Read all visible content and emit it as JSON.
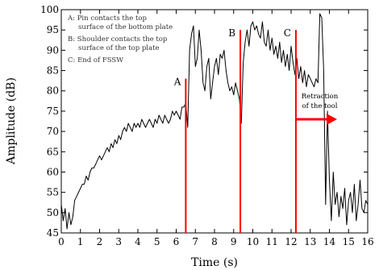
{
  "chart_data": {
    "type": "line",
    "xlabel": "Time (s)",
    "ylabel": "Amplitude (dB)",
    "xlim": [
      0,
      16
    ],
    "ylim": [
      45,
      100
    ],
    "x_ticks": [
      0,
      1,
      2,
      3,
      4,
      5,
      6,
      7,
      8,
      9,
      10,
      11,
      12,
      13,
      14,
      15,
      16
    ],
    "y_ticks": [
      45,
      50,
      55,
      60,
      65,
      70,
      75,
      80,
      85,
      90,
      95,
      100
    ],
    "grid": false,
    "legend_lines": [
      "A: Pin contacts the top",
      "surface of the bottom plate",
      "B: Shoulder contacts the top",
      "surface of the top plate",
      "C: End of FSSW"
    ],
    "markers": [
      {
        "label": "A",
        "x": 6.5,
        "color": "#ff0000"
      },
      {
        "label": "B",
        "x": 9.35,
        "color": "#ff0000"
      },
      {
        "label": "C",
        "x": 12.25,
        "color": "#ff0000"
      }
    ],
    "annotation": {
      "lines": [
        "Retraction",
        "of the tool"
      ],
      "arrow_from_x": 12.25,
      "arrow_to_x": 14.4,
      "arrow_y": 73,
      "color": "#ff0000"
    },
    "series": [
      {
        "color": "#000000",
        "x": [
          0.0,
          0.1,
          0.2,
          0.3,
          0.4,
          0.5,
          0.6,
          0.7,
          0.8,
          0.9,
          1.0,
          1.1,
          1.2,
          1.3,
          1.4,
          1.5,
          1.6,
          1.7,
          1.8,
          1.9,
          2.0,
          2.1,
          2.2,
          2.3,
          2.4,
          2.5,
          2.6,
          2.7,
          2.8,
          2.9,
          3.0,
          3.1,
          3.2,
          3.3,
          3.4,
          3.5,
          3.6,
          3.7,
          3.8,
          3.9,
          4.0,
          4.1,
          4.2,
          4.3,
          4.4,
          4.5,
          4.6,
          4.7,
          4.8,
          4.9,
          5.0,
          5.1,
          5.2,
          5.3,
          5.4,
          5.5,
          5.6,
          5.7,
          5.8,
          5.9,
          6.0,
          6.1,
          6.2,
          6.3,
          6.4,
          6.5,
          6.6,
          6.7,
          6.8,
          6.9,
          7.0,
          7.1,
          7.2,
          7.3,
          7.4,
          7.5,
          7.6,
          7.7,
          7.8,
          7.9,
          8.0,
          8.1,
          8.2,
          8.3,
          8.4,
          8.5,
          8.6,
          8.7,
          8.8,
          8.9,
          9.0,
          9.1,
          9.2,
          9.3,
          9.4,
          9.5,
          9.6,
          9.7,
          9.8,
          9.9,
          10.0,
          10.1,
          10.2,
          10.3,
          10.4,
          10.5,
          10.6,
          10.7,
          10.8,
          10.9,
          11.0,
          11.1,
          11.2,
          11.3,
          11.4,
          11.5,
          11.6,
          11.7,
          11.8,
          11.9,
          12.0,
          12.1,
          12.2,
          12.3,
          12.4,
          12.5,
          12.6,
          12.7,
          12.8,
          12.9,
          13.0,
          13.1,
          13.2,
          13.3,
          13.4,
          13.5,
          13.6,
          13.7,
          13.8,
          13.9,
          14.0,
          14.1,
          14.2,
          14.3,
          14.4,
          14.5,
          14.6,
          14.7,
          14.8,
          14.9,
          15.0,
          15.1,
          15.2,
          15.3,
          15.4,
          15.5,
          15.6,
          15.7,
          15.8,
          15.9,
          16.0
        ],
        "y": [
          52,
          48,
          51,
          46,
          50,
          47,
          49,
          53,
          54,
          55,
          56,
          57,
          57,
          59,
          58,
          60,
          61,
          61,
          62,
          63,
          64,
          63,
          64,
          65,
          66,
          65,
          67,
          66,
          68,
          67,
          69,
          68,
          70,
          71,
          70,
          72,
          71,
          70,
          72,
          71,
          72,
          71,
          73,
          72,
          71,
          72,
          73,
          72,
          71,
          73,
          72,
          74,
          73,
          72,
          74,
          73,
          72,
          73,
          75,
          74,
          75,
          74,
          73,
          76,
          76,
          77,
          71,
          90,
          94,
          96,
          86,
          88,
          95,
          90,
          82,
          80,
          86,
          88,
          78,
          82,
          86,
          88,
          84,
          89,
          88,
          90,
          85,
          82,
          80,
          81,
          79,
          82,
          80,
          78,
          72,
          87,
          92,
          95,
          91,
          96,
          97,
          95,
          96,
          94,
          93,
          97,
          92,
          91,
          95,
          90,
          93,
          89,
          91,
          88,
          92,
          87,
          90,
          86,
          89,
          85,
          91,
          87,
          84,
          88,
          83,
          86,
          82,
          85,
          81,
          84,
          83,
          82,
          81,
          83,
          82,
          99,
          98,
          85,
          52,
          75,
          58,
          48,
          60,
          52,
          55,
          49,
          54,
          51,
          56,
          47,
          53,
          55,
          50,
          57,
          48,
          52,
          58,
          51,
          50,
          53,
          52
        ]
      }
    ]
  }
}
